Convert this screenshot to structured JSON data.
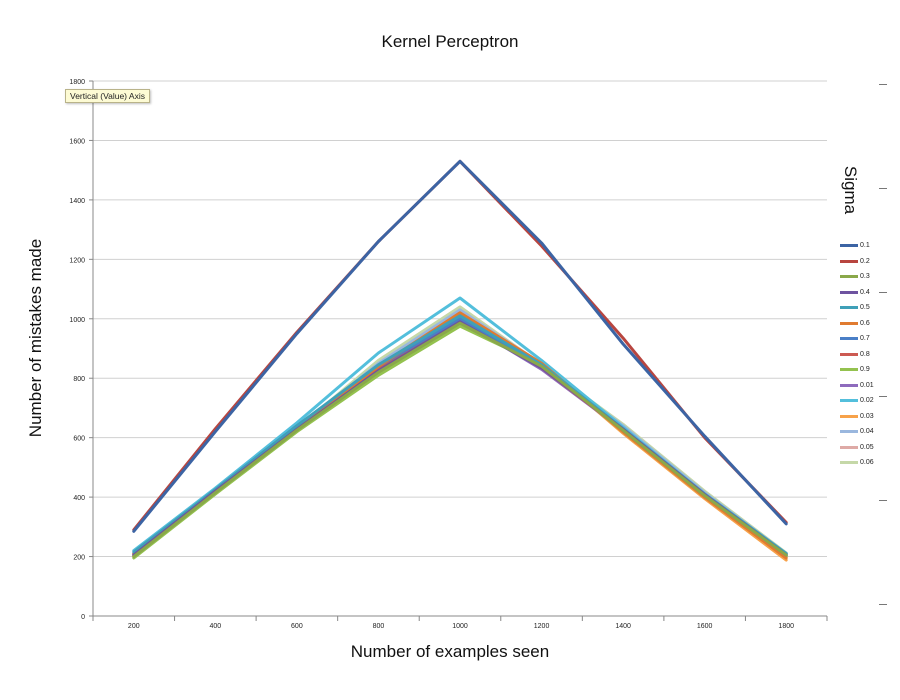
{
  "tooltip": "Vertical (Value) Axis",
  "chart_data": {
    "type": "line",
    "title": "Kernel Perceptron",
    "xlabel": "Number of examples seen",
    "ylabel": "Number of mistakes made",
    "x": [
      200,
      400,
      600,
      800,
      1000,
      1200,
      1400,
      1600,
      1800
    ],
    "xlim": [
      100,
      1900
    ],
    "ylim": [
      0,
      1800
    ],
    "yticks": [
      0,
      200,
      400,
      600,
      800,
      1000,
      1200,
      1400,
      1600,
      1800
    ],
    "grid": true,
    "legend_title": "Sigma",
    "legend_position": "right",
    "series": [
      {
        "name": "0.1",
        "color": "#3c64a4",
        "values": [
          285,
          620,
          950,
          1260,
          1530,
          1255,
          915,
          605,
          310
        ]
      },
      {
        "name": "0.2",
        "color": "#b8453f",
        "values": [
          290,
          630,
          955,
          1260,
          1530,
          1245,
          935,
          600,
          315
        ]
      },
      {
        "name": "0.3",
        "color": "#8aa84a",
        "values": [
          200,
          415,
          625,
          820,
          985,
          840,
          625,
          405,
          205
        ]
      },
      {
        "name": "0.4",
        "color": "#6e53a0",
        "values": [
          205,
          420,
          628,
          825,
          990,
          835,
          628,
          408,
          205
        ]
      },
      {
        "name": "0.5",
        "color": "#3fa0b8",
        "values": [
          215,
          425,
          640,
          845,
          1010,
          845,
          630,
          410,
          210
        ]
      },
      {
        "name": "0.6",
        "color": "#e07b30",
        "values": [
          210,
          420,
          635,
          840,
          1020,
          850,
          620,
          400,
          195
        ]
      },
      {
        "name": "0.7",
        "color": "#4a7fc7",
        "values": [
          210,
          425,
          640,
          840,
          1000,
          840,
          630,
          405,
          205
        ]
      },
      {
        "name": "0.8",
        "color": "#cc5a52",
        "values": [
          205,
          420,
          630,
          835,
          995,
          835,
          625,
          405,
          205
        ]
      },
      {
        "name": "0.9",
        "color": "#94c24f",
        "values": [
          195,
          410,
          620,
          810,
          975,
          845,
          620,
          400,
          200
        ]
      },
      {
        "name": "0.01",
        "color": "#8e6bbd",
        "values": [
          205,
          420,
          630,
          830,
          995,
          830,
          625,
          405,
          205
        ]
      },
      {
        "name": "0.02",
        "color": "#53bfdc",
        "values": [
          220,
          430,
          650,
          885,
          1070,
          860,
          635,
          410,
          210
        ]
      },
      {
        "name": "0.03",
        "color": "#f7a24a",
        "values": [
          200,
          415,
          625,
          830,
          1010,
          850,
          615,
          395,
          188
        ]
      },
      {
        "name": "0.04",
        "color": "#9ab7de",
        "values": [
          205,
          415,
          630,
          850,
          1030,
          845,
          640,
          415,
          210
        ]
      },
      {
        "name": "0.05",
        "color": "#deaaa6",
        "values": [
          205,
          420,
          630,
          845,
          1025,
          850,
          630,
          410,
          205
        ]
      },
      {
        "name": "0.06",
        "color": "#c5d8a8",
        "values": [
          200,
          410,
          630,
          860,
          1040,
          845,
          645,
          420,
          212
        ]
      }
    ]
  }
}
